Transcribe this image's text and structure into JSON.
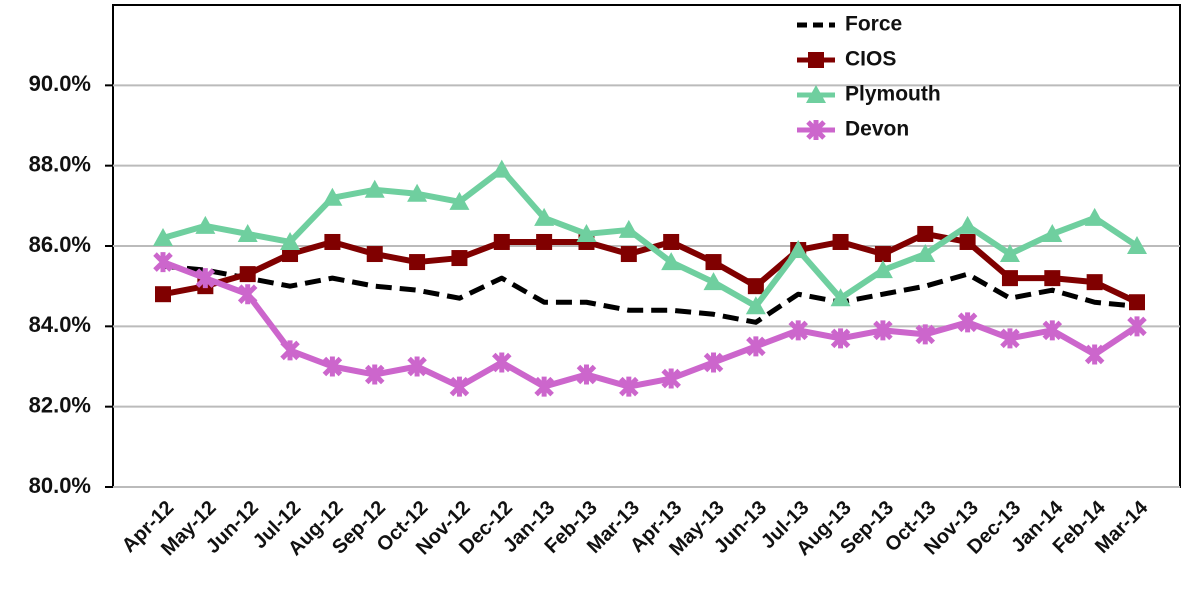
{
  "chart_data": {
    "type": "line",
    "categories": [
      "Apr-12",
      "May-12",
      "Jun-12",
      "Jul-12",
      "Aug-12",
      "Sep-12",
      "Oct-12",
      "Nov-12",
      "Dec-12",
      "Jan-13",
      "Feb-13",
      "Mar-13",
      "Apr-13",
      "May-13",
      "Jun-13",
      "Jul-13",
      "Aug-13",
      "Sep-13",
      "Oct-13",
      "Nov-13",
      "Dec-13",
      "Jan-14",
      "Feb-14",
      "Mar-14"
    ],
    "series": [
      {
        "name": "Force",
        "color": "#000000",
        "dash": true,
        "marker": "none",
        "values": [
          85.5,
          85.4,
          85.2,
          85.0,
          85.2,
          85.0,
          84.9,
          84.7,
          85.2,
          84.6,
          84.6,
          84.4,
          84.4,
          84.3,
          84.1,
          84.8,
          84.6,
          84.8,
          85.0,
          85.3,
          84.7,
          84.9,
          84.6,
          84.5
        ]
      },
      {
        "name": "CIOS",
        "color": "#800000",
        "dash": false,
        "marker": "square",
        "values": [
          84.8,
          85.0,
          85.3,
          85.8,
          86.1,
          85.8,
          85.6,
          85.7,
          86.1,
          86.1,
          86.1,
          85.8,
          86.1,
          85.6,
          85.0,
          85.9,
          86.1,
          85.8,
          86.3,
          86.1,
          85.2,
          85.2,
          85.1,
          84.6
        ]
      },
      {
        "name": "Plymouth",
        "color": "#6fcf9f",
        "dash": false,
        "marker": "triangle",
        "values": [
          86.2,
          86.5,
          86.3,
          86.1,
          87.2,
          87.4,
          87.3,
          87.1,
          87.9,
          86.7,
          86.3,
          86.4,
          85.6,
          85.1,
          84.5,
          85.9,
          84.7,
          85.4,
          85.8,
          86.5,
          85.8,
          86.3,
          86.7,
          86.0
        ]
      },
      {
        "name": "Devon",
        "color": "#cc66cc",
        "dash": false,
        "marker": "x",
        "values": [
          85.6,
          85.2,
          84.8,
          83.4,
          83.0,
          82.8,
          83.0,
          82.5,
          83.1,
          82.5,
          82.8,
          82.5,
          82.7,
          83.1,
          83.5,
          83.9,
          83.7,
          83.9,
          83.8,
          84.1,
          83.7,
          83.9,
          83.3,
          84.0
        ]
      }
    ],
    "ylim": [
      80,
      92
    ],
    "yticks": [
      {
        "value": 80,
        "label": "80.0%"
      },
      {
        "value": 82,
        "label": "82.0%"
      },
      {
        "value": 84,
        "label": "84.0%"
      },
      {
        "value": 86,
        "label": "86.0%"
      },
      {
        "value": 88,
        "label": "88.0%"
      },
      {
        "value": 90,
        "label": "90.0%"
      }
    ],
    "grid": true,
    "legend": "top-right"
  }
}
